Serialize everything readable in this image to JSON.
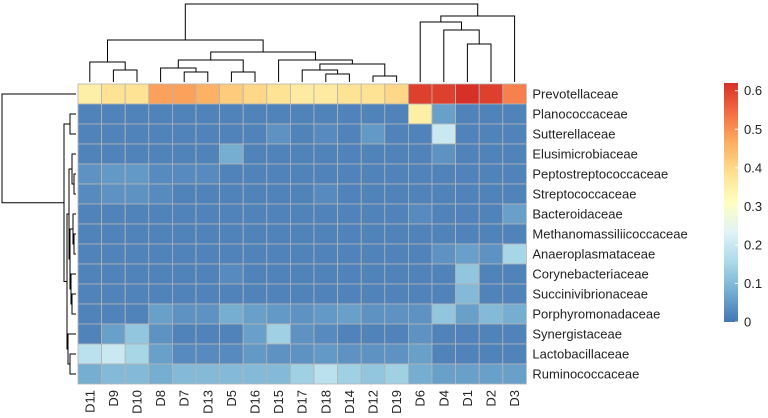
{
  "chart_data": {
    "type": "heatmap",
    "title": "",
    "rows": [
      "Prevotellaceae",
      "Planococcaceae",
      "Sutterellaceae",
      "Elusimicrobiaceae",
      "Peptostreptococcaceae",
      "Streptococcaceae",
      "Bacteroidaceae",
      "Methanomassiliicoccaceae",
      "Anaeroplasmataceae",
      "Corynebacteriaceae",
      "Succinivibrionaceae",
      "Porphyromonadaceae",
      "Synergistaceae",
      "Lactobacillaceae",
      "Ruminococcaceae"
    ],
    "columns": [
      "D11",
      "D9",
      "D10",
      "D8",
      "D7",
      "D13",
      "D5",
      "D16",
      "D15",
      "D17",
      "D18",
      "D14",
      "D12",
      "D19",
      "D6",
      "D4",
      "D1",
      "D2",
      "D3"
    ],
    "values": [
      [
        0.35,
        0.38,
        0.38,
        0.48,
        0.48,
        0.46,
        0.42,
        0.4,
        0.38,
        0.36,
        0.36,
        0.38,
        0.38,
        0.4,
        0.6,
        0.6,
        0.62,
        0.6,
        0.52
      ],
      [
        0.02,
        0.02,
        0.02,
        0.02,
        0.02,
        0.02,
        0.02,
        0.02,
        0.02,
        0.02,
        0.02,
        0.02,
        0.02,
        0.02,
        0.35,
        0.06,
        0.02,
        0.02,
        0.02
      ],
      [
        0.02,
        0.02,
        0.02,
        0.02,
        0.02,
        0.02,
        0.02,
        0.02,
        0.04,
        0.02,
        0.03,
        0.02,
        0.05,
        0.02,
        0.02,
        0.2,
        0.02,
        0.02,
        0.02
      ],
      [
        0.02,
        0.02,
        0.02,
        0.02,
        0.02,
        0.02,
        0.08,
        0.02,
        0.02,
        0.02,
        0.02,
        0.02,
        0.02,
        0.02,
        0.02,
        0.04,
        0.02,
        0.02,
        0.02
      ],
      [
        0.04,
        0.05,
        0.05,
        0.03,
        0.03,
        0.03,
        0.02,
        0.02,
        0.02,
        0.02,
        0.02,
        0.02,
        0.02,
        0.02,
        0.02,
        0.02,
        0.02,
        0.02,
        0.02
      ],
      [
        0.03,
        0.04,
        0.04,
        0.03,
        0.02,
        0.02,
        0.02,
        0.02,
        0.02,
        0.02,
        0.03,
        0.02,
        0.02,
        0.02,
        0.02,
        0.02,
        0.02,
        0.02,
        0.02
      ],
      [
        0.02,
        0.02,
        0.02,
        0.02,
        0.02,
        0.02,
        0.02,
        0.02,
        0.02,
        0.02,
        0.02,
        0.02,
        0.02,
        0.02,
        0.03,
        0.02,
        0.02,
        0.02,
        0.06
      ],
      [
        0.02,
        0.02,
        0.02,
        0.02,
        0.02,
        0.02,
        0.02,
        0.02,
        0.02,
        0.02,
        0.02,
        0.02,
        0.02,
        0.02,
        0.02,
        0.02,
        0.02,
        0.02,
        0.02
      ],
      [
        0.02,
        0.02,
        0.02,
        0.02,
        0.02,
        0.02,
        0.02,
        0.02,
        0.02,
        0.02,
        0.02,
        0.02,
        0.02,
        0.02,
        0.02,
        0.04,
        0.06,
        0.04,
        0.15
      ],
      [
        0.02,
        0.02,
        0.02,
        0.02,
        0.02,
        0.02,
        0.03,
        0.02,
        0.02,
        0.02,
        0.02,
        0.02,
        0.02,
        0.02,
        0.02,
        0.02,
        0.12,
        0.02,
        0.02
      ],
      [
        0.02,
        0.02,
        0.02,
        0.02,
        0.02,
        0.02,
        0.02,
        0.02,
        0.02,
        0.02,
        0.02,
        0.02,
        0.02,
        0.02,
        0.02,
        0.02,
        0.1,
        0.02,
        0.02
      ],
      [
        0.02,
        0.02,
        0.02,
        0.06,
        0.04,
        0.04,
        0.08,
        0.06,
        0.05,
        0.04,
        0.05,
        0.06,
        0.04,
        0.04,
        0.04,
        0.12,
        0.06,
        0.1,
        0.08
      ],
      [
        0.02,
        0.06,
        0.12,
        0.04,
        0.02,
        0.02,
        0.02,
        0.06,
        0.14,
        0.04,
        0.03,
        0.02,
        0.02,
        0.02,
        0.04,
        0.02,
        0.02,
        0.02,
        0.02
      ],
      [
        0.18,
        0.2,
        0.15,
        0.06,
        0.03,
        0.03,
        0.03,
        0.05,
        0.04,
        0.04,
        0.05,
        0.04,
        0.04,
        0.04,
        0.06,
        0.02,
        0.02,
        0.02,
        0.02
      ],
      [
        0.08,
        0.1,
        0.1,
        0.08,
        0.1,
        0.1,
        0.1,
        0.1,
        0.1,
        0.14,
        0.18,
        0.14,
        0.12,
        0.14,
        0.08,
        0.06,
        0.06,
        0.06,
        0.06
      ]
    ],
    "color_scale": {
      "min": 0,
      "max": 0.62,
      "colors": [
        "#4575b4",
        "#74add1",
        "#abd9e9",
        "#e0f3f8",
        "#ffffbf",
        "#fee090",
        "#fdae61",
        "#f46d43",
        "#d73027"
      ]
    },
    "colorbar_ticks": [
      {
        "value": 0,
        "label": "0"
      },
      {
        "value": 0.1,
        "label": "0.1"
      },
      {
        "value": 0.2,
        "label": "0.2"
      },
      {
        "value": 0.3,
        "label": "0.3"
      },
      {
        "value": 0.4,
        "label": "0.4"
      },
      {
        "value": 0.5,
        "label": "0.5"
      },
      {
        "value": 0.6,
        "label": "0.6"
      }
    ],
    "row_dendrogram": true,
    "column_dendrogram": true,
    "legend": "right"
  }
}
